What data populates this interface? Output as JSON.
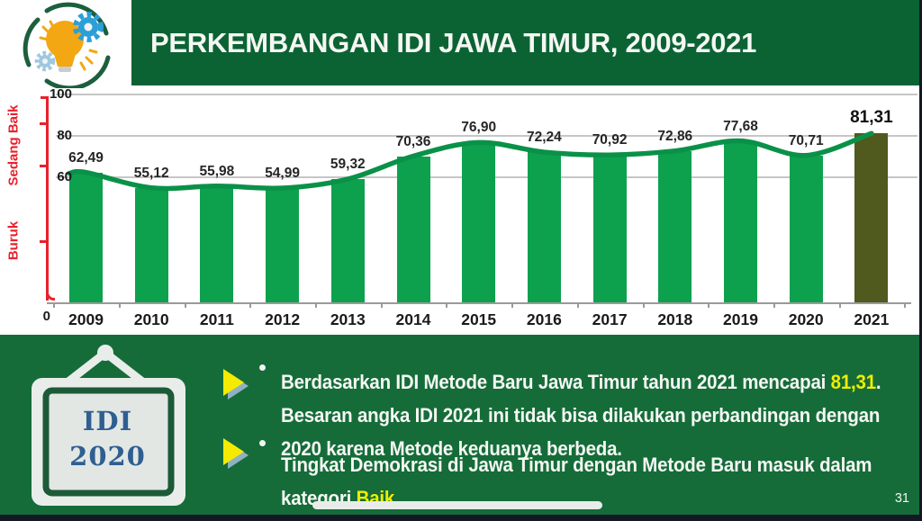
{
  "slide": {
    "title": "PERKEMBANGAN IDI JAWA TIMUR, 2009-2021",
    "page_number": "31"
  },
  "chart_data": {
    "type": "bar",
    "title": "PERKEMBANGAN IDI JAWA TIMUR, 2009-2021",
    "categories": [
      "2009",
      "2010",
      "2011",
      "2012",
      "2013",
      "2014",
      "2015",
      "2016",
      "2017",
      "2018",
      "2019",
      "2020",
      "2021"
    ],
    "values": [
      62.49,
      55.12,
      55.98,
      54.99,
      59.32,
      70.36,
      76.9,
      72.24,
      70.92,
      72.86,
      77.68,
      70.71,
      81.31
    ],
    "value_labels": [
      "62,49",
      "55,12",
      "55,98",
      "54,99",
      "59,32",
      "70,36",
      "76,90",
      "72,24",
      "70,92",
      "72,86",
      "77,68",
      "70,71",
      "81,31"
    ],
    "ylim": [
      0,
      100
    ],
    "ytick_labels": [
      "100",
      "80",
      "60",
      "0"
    ],
    "grid_values": [
      100,
      80,
      60
    ],
    "origin_label": "0",
    "zone_labels": {
      "upper": "Sedang Baik",
      "lower": "Buruk"
    },
    "line_overlay": true,
    "highlighted_category": "2021",
    "legend_position": "none",
    "grid": true
  },
  "callout_sign": {
    "lines": [
      "IDI",
      "2020"
    ]
  },
  "bullets": {
    "marker": "•",
    "items": [
      {
        "segments": [
          {
            "text": "Berdasarkan IDI Metode Baru Jawa Timur tahun 2021 mencapai ",
            "style": "normal"
          },
          {
            "text": "81,31",
            "style": "highlight"
          },
          {
            "text": ". Besaran angka IDI 2021 ini tidak bisa dilakukan perbandingan dengan 2020 karena Metode keduanya berbeda.",
            "style": "normal"
          }
        ]
      },
      {
        "segments": [
          {
            "text": "Tingkat Demokrasi di Jawa Timur dengan Metode Baru masuk dalam kategori ",
            "style": "normal"
          },
          {
            "text": "Baik",
            "style": "highlight"
          }
        ]
      }
    ]
  },
  "colors": {
    "header_green": "#0B6334",
    "band_green": "#156C39",
    "bar_green": "#0DA14E",
    "bar_highlight_olive": "#50591E",
    "line_green": "#0A9148",
    "axis_red": "#E8212B",
    "accent_yellow": "#F0EE00",
    "grid_gray": "#C6C6C6",
    "sign_blue": "#2F5F91",
    "text_white": "#F5F7F3"
  }
}
